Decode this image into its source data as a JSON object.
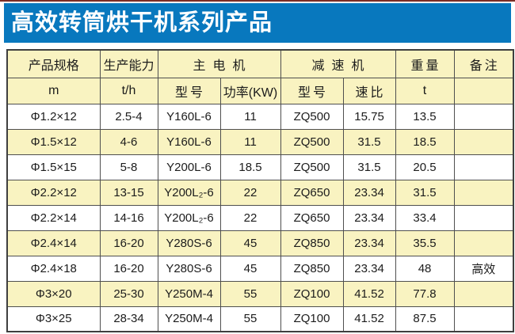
{
  "page": {
    "title": "高效转筒烘干机系列产品",
    "colors": {
      "banner_blue": "#0878be",
      "row_yellow": "#f9f3c1",
      "top_line_maroon": "#7c2d26",
      "border_gray": "#4f4f4f",
      "title_text": "#ffffff"
    }
  },
  "table": {
    "header_row1": {
      "spec": "产品规格",
      "capacity": "生产能力",
      "main_motor": "主电机",
      "reducer": "减速机",
      "weight": "重量",
      "remark": "备注"
    },
    "header_row2": {
      "spec_unit": "m",
      "capacity_unit": "t/h",
      "motor_model": "型号",
      "motor_power": "功率(KW)",
      "reducer_model": "型号",
      "speed_ratio": "速比",
      "weight_unit": "t",
      "remark": ""
    },
    "rows": [
      [
        "Φ1.2×12",
        "2.5-4",
        "Y160L-6",
        "11",
        "ZQ500",
        "15.75",
        "13.5",
        ""
      ],
      [
        "Φ1.5×12",
        "4-6",
        "Y160L-6",
        "11",
        "ZQ500",
        "31.5",
        "18.5",
        ""
      ],
      [
        "Φ1.5×15",
        "5-8",
        "Y200L-6",
        "18.5",
        "ZQ500",
        "31.5",
        "20.5",
        ""
      ],
      [
        "Φ2.2×12",
        "13-15",
        "Y200L₂-6",
        "22",
        "ZQ650",
        "23.34",
        "31.5",
        ""
      ],
      [
        "Φ2.2×14",
        "14-16",
        "Y200L₂-6",
        "22",
        "ZQ650",
        "23.34",
        "33.4",
        ""
      ],
      [
        "Φ2.4×14",
        "16-20",
        "Y280S-6",
        "45",
        "ZQ850",
        "23.34",
        "35.5",
        ""
      ],
      [
        "Φ2.4×18",
        "16-20",
        "Y280S-6",
        "45",
        "ZQ850",
        "23.34",
        "48",
        "高效"
      ],
      [
        "Φ3×20",
        "25-30",
        "Y250M-4",
        "55",
        "ZQ100",
        "41.52",
        "77.8",
        ""
      ],
      [
        "Φ3×25",
        "28-34",
        "Y250M-4",
        "55",
        "ZQ100",
        "41.52",
        "87.5",
        ""
      ]
    ]
  }
}
